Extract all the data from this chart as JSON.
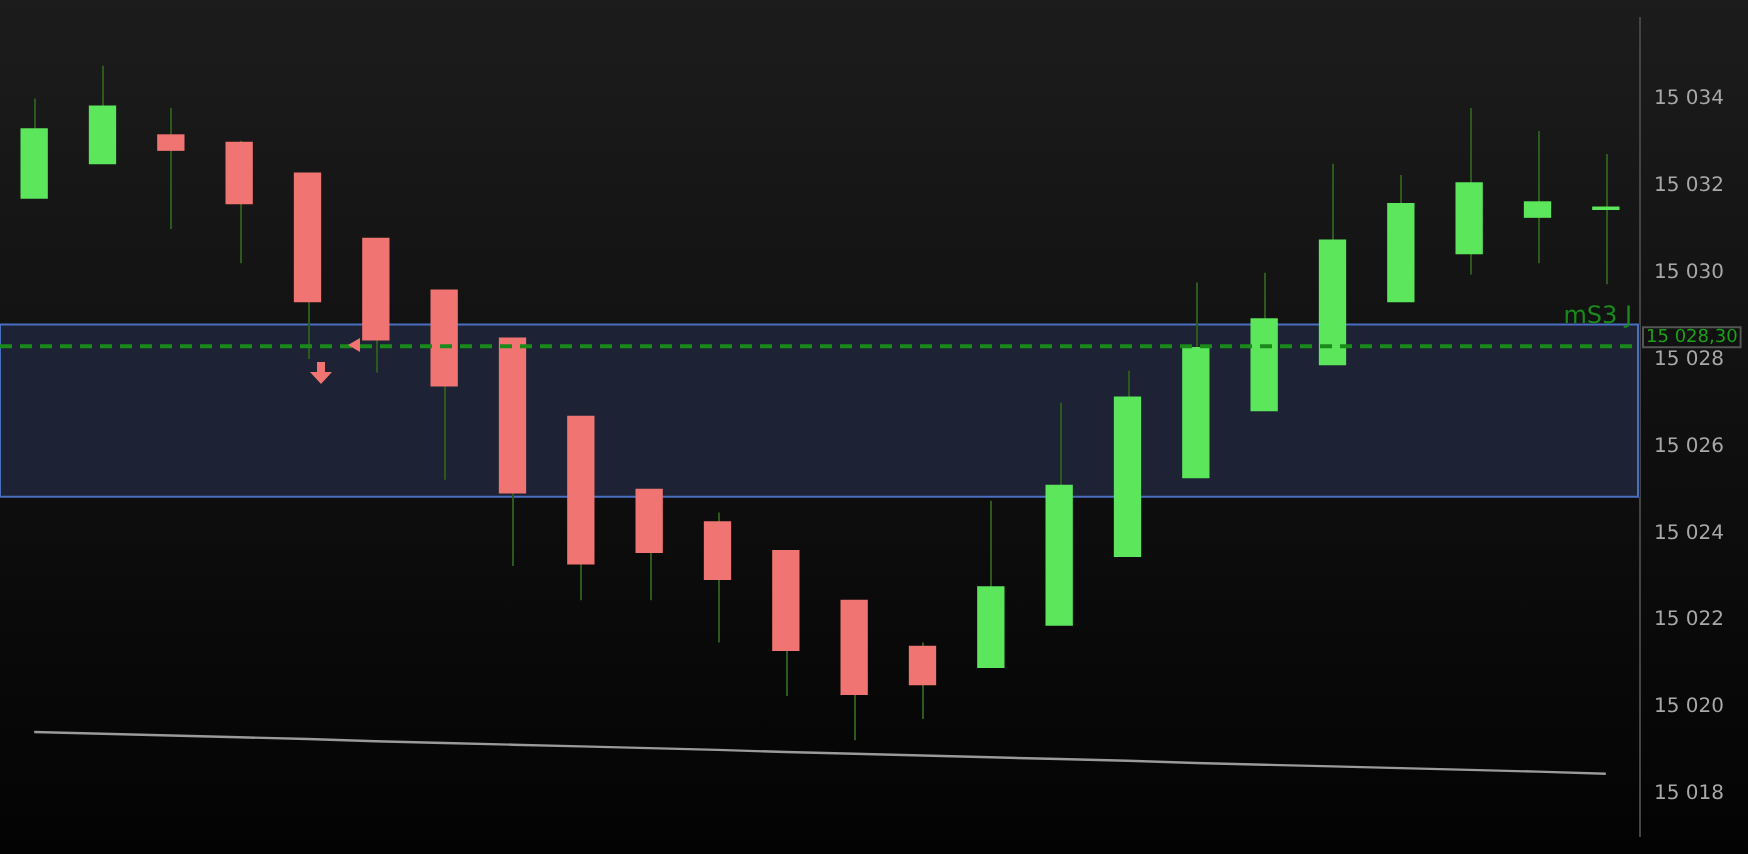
{
  "chart_data": {
    "type": "candlestick",
    "categories": [
      null,
      null,
      null,
      null,
      null,
      null,
      null,
      null,
      null,
      null,
      null,
      null,
      null,
      null,
      null,
      null,
      null,
      null,
      null,
      null,
      null,
      null,
      null,
      null
    ],
    "ohlc": [
      [
        15031.71,
        15034.0,
        15031.71,
        15033.3
      ],
      [
        15032.5,
        15034.75,
        15032.5,
        15033.82
      ],
      [
        15033.16,
        15033.78,
        15031.0,
        15032.81
      ],
      [
        15032.99,
        15033.03,
        15030.21,
        15031.58
      ],
      [
        15032.28,
        15032.28,
        15028.01,
        15029.33
      ],
      [
        15030.78,
        15030.78,
        15027.7,
        15028.45
      ],
      [
        15029.59,
        15029.59,
        15025.23,
        15027.39
      ],
      [
        15028.49,
        15028.49,
        15023.25,
        15024.93
      ],
      [
        15026.69,
        15026.69,
        15022.46,
        15023.3
      ],
      [
        15025.01,
        15025.01,
        15022.46,
        15023.56
      ],
      [
        15024.26,
        15024.48,
        15021.49,
        15022.94
      ],
      [
        15023.6,
        15023.6,
        15020.26,
        15021.31
      ],
      [
        15022.46,
        15022.46,
        15019.24,
        15020.3
      ],
      [
        15021.4,
        15021.49,
        15019.73,
        15020.52
      ],
      [
        15020.92,
        15024.75,
        15020.92,
        15022.77
      ],
      [
        15021.89,
        15027.0,
        15021.89,
        15025.1
      ],
      [
        15023.47,
        15027.74,
        15023.47,
        15027.13
      ],
      [
        15025.28,
        15029.77,
        15025.28,
        15028.27
      ],
      [
        15026.82,
        15029.99,
        15026.82,
        15028.93
      ],
      [
        15027.88,
        15032.5,
        15027.88,
        15030.74
      ],
      [
        15029.33,
        15032.24,
        15029.33,
        15031.58
      ],
      [
        15030.43,
        15033.78,
        15029.95,
        15032.06
      ],
      [
        15031.27,
        15033.25,
        15030.21,
        15031.62
      ],
      [
        15031.45,
        15032.72,
        15029.73,
        15031.5
      ]
    ],
    "colors": [
      "#5ce65c",
      "#5ce65c",
      "#f07472",
      "#f07472",
      "#f07472",
      "#f07472",
      "#f07472",
      "#f07472",
      "#f07472",
      "#f07472",
      "#f07472",
      "#f07472",
      "#f07472",
      "#f07472",
      "#5ce65c",
      "#5ce65c",
      "#5ce65c",
      "#5ce65c",
      "#5ce65c",
      "#5ce65c",
      "#5ce65c",
      "#5ce65c",
      "#5ce65c",
      "#5ce65c"
    ],
    "series": [
      {
        "type": "line",
        "values": [
          15019.43,
          15019.39,
          15019.35,
          15019.31,
          15019.27,
          15019.22,
          15019.18,
          15019.14,
          15019.1,
          15019.06,
          15019.02,
          15018.97,
          15018.93,
          15018.89,
          15018.85,
          15018.81,
          15018.77,
          15018.72,
          15018.68,
          15018.64,
          15018.6,
          15018.56,
          15018.52,
          15018.47
        ],
        "color": "#9a9a9a"
      }
    ],
    "ylim": [
      15017.04,
      15035.85
    ],
    "yticks": [
      {
        "value": 15018,
        "label": "15 018"
      },
      {
        "value": 15020,
        "label": "15 020"
      },
      {
        "value": 15022,
        "label": "15 022"
      },
      {
        "value": 15024,
        "label": "15 024"
      },
      {
        "value": 15026,
        "label": "15 026"
      },
      {
        "value": 15028,
        "label": "15 028"
      },
      {
        "value": 15030,
        "label": "15 030"
      },
      {
        "value": 15032,
        "label": "15 032"
      },
      {
        "value": 15034,
        "label": "15 034"
      }
    ],
    "tick_labels": "y",
    "ref_lines": [
      {
        "axis": "y",
        "value": 15028.3,
        "label": "mS3 J",
        "color": "#1a8a1a",
        "line_style": "dashed"
      }
    ],
    "bands": [
      {
        "axis": "y",
        "from": 15024.84,
        "to": 15028.8,
        "color": "#1f2538"
      }
    ],
    "annotations": [
      "15 028,30"
    ],
    "grid": false,
    "legend": false
  }
}
